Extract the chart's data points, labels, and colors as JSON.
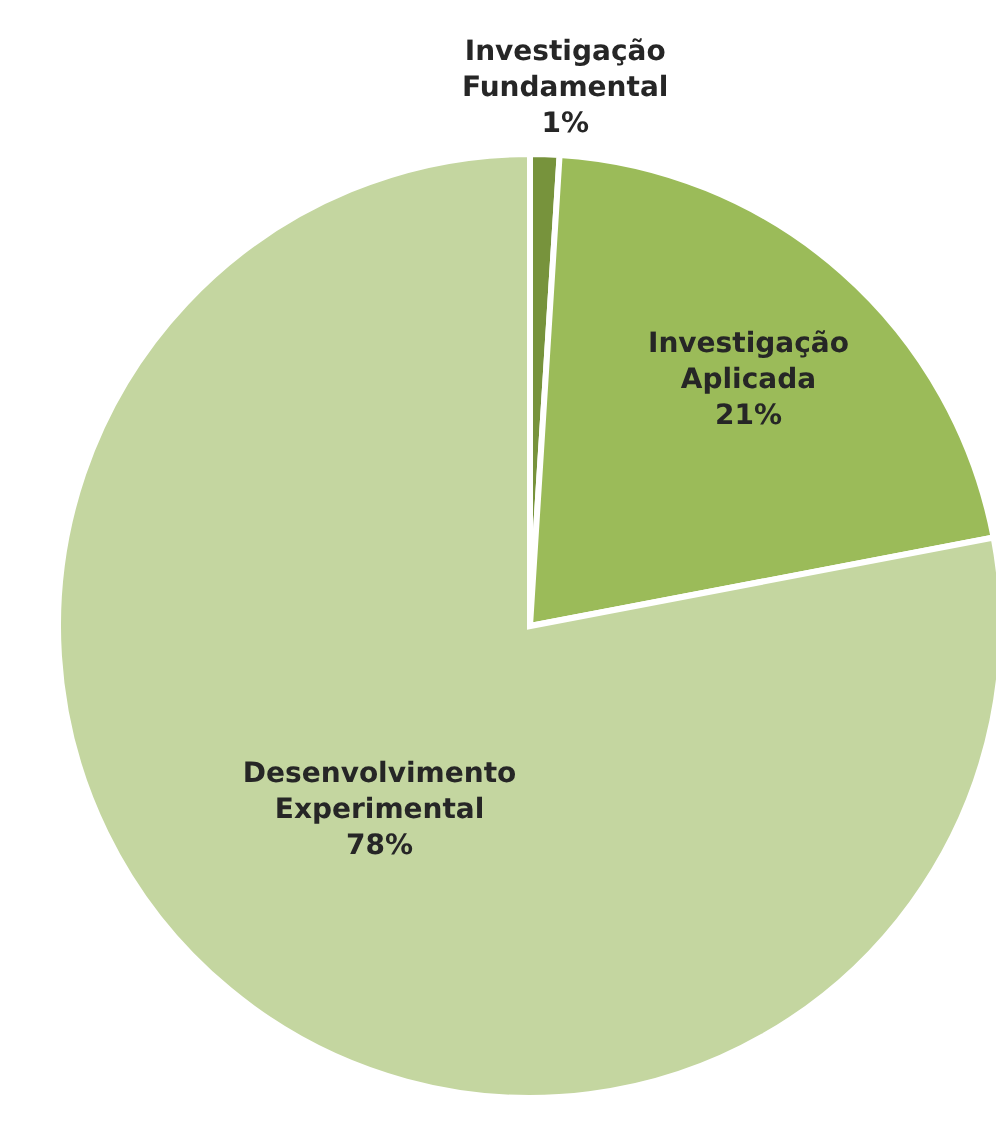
{
  "chart_data": {
    "type": "pie",
    "categories": [
      "Investigação Fundamental",
      "Investigação Aplicada",
      "Desenvolvimento Experimental"
    ],
    "values": [
      1,
      21,
      78
    ],
    "value_labels": [
      "1%",
      "21%",
      "78%"
    ],
    "colors": [
      "#77933c",
      "#9bbb59",
      "#c4d6a0"
    ]
  }
}
